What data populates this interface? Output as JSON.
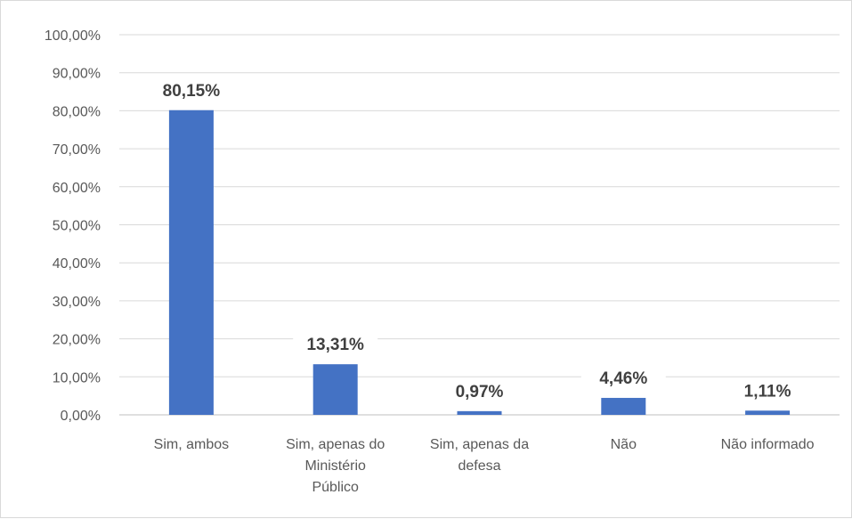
{
  "chart_data": {
    "type": "bar",
    "categories": [
      [
        "Sim, ambos"
      ],
      [
        "Sim, apenas do",
        "Ministério",
        "Público"
      ],
      [
        "Sim, apenas da",
        "defesa"
      ],
      [
        "Não"
      ],
      [
        "Não informado"
      ]
    ],
    "values": [
      80.15,
      13.31,
      0.97,
      4.46,
      1.11
    ],
    "data_labels": [
      "80,15%",
      "13,31%",
      "0,97%",
      "4,46%",
      "1,11%"
    ],
    "y_ticks": [
      "0,00%",
      "10,00%",
      "20,00%",
      "30,00%",
      "40,00%",
      "50,00%",
      "60,00%",
      "70,00%",
      "80,00%",
      "90,00%",
      "100,00%"
    ],
    "ylim": [
      0,
      100
    ],
    "grid": true,
    "bar_color": "#4472C4",
    "grid_color": "#d9d9d9"
  }
}
